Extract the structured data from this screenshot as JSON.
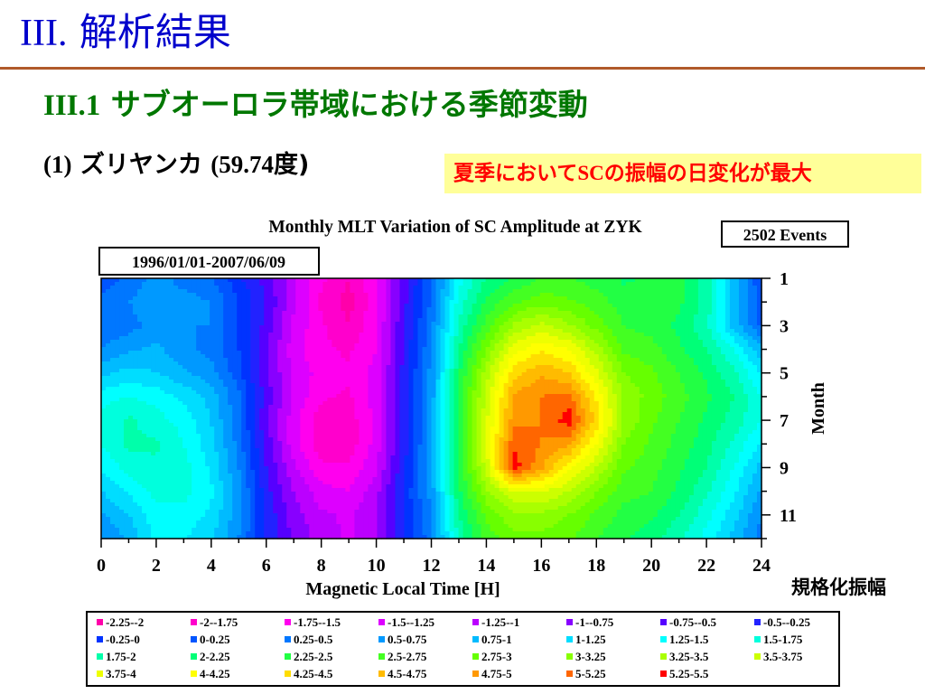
{
  "slide": {
    "title_num": "III.",
    "title_text": "解析結果",
    "section_num": "III.1",
    "section_text": "サブオーロラ帯域における季節変動",
    "station_prefix": "(1)",
    "station_name": "ズリヤンカ",
    "station_lat": "(59.74",
    "station_unit": "度)",
    "callout_a": "夏季において",
    "callout_b": "SC",
    "callout_c": "の振幅の日変化が最大",
    "norm_label": "規格化振幅"
  },
  "chart_data": {
    "type": "heatmap",
    "title": "Monthly MLT Variation of SC Amplitude at ZYK",
    "period_label": "1996/01/01-2007/06/09",
    "events_label": "2502 Events",
    "xlabel": "Magnetic Local Time [H]",
    "ylabel": "Month",
    "xlim": [
      0,
      24
    ],
    "ylim": [
      1,
      12
    ],
    "x_ticks": [
      "0",
      "2",
      "4",
      "6",
      "8",
      "10",
      "12",
      "14",
      "16",
      "18",
      "20",
      "22",
      "24"
    ],
    "y_ticks": [
      "1",
      "3",
      "5",
      "7",
      "9",
      "11"
    ],
    "x": [
      0,
      1,
      2,
      3,
      4,
      5,
      6,
      7,
      8,
      9,
      10,
      11,
      12,
      13,
      14,
      15,
      16,
      17,
      18,
      19,
      20,
      21,
      22,
      23,
      24
    ],
    "y": [
      1,
      2,
      3,
      4,
      5,
      6,
      7,
      8,
      9,
      10,
      11,
      12
    ],
    "z": [
      [
        0.1,
        0.3,
        0.6,
        0.4,
        0.3,
        -0.2,
        -0.6,
        -1.2,
        -1.7,
        -2.0,
        -1.5,
        -0.6,
        0.2,
        1.4,
        2.0,
        2.3,
        2.5,
        2.5,
        2.4,
        2.2,
        2.3,
        2.3,
        1.9,
        0.9,
        0.0
      ],
      [
        0.3,
        0.5,
        0.7,
        0.6,
        0.5,
        0.0,
        -0.5,
        -1.2,
        -1.8,
        -2.1,
        -1.6,
        -0.6,
        0.3,
        1.6,
        2.3,
        2.7,
        2.9,
        2.8,
        2.6,
        2.4,
        2.4,
        2.3,
        1.9,
        0.9,
        0.1
      ],
      [
        0.3,
        0.4,
        0.6,
        0.5,
        0.5,
        0.0,
        -0.6,
        -1.3,
        -1.7,
        -2.0,
        -1.5,
        -0.5,
        0.4,
        1.8,
        2.6,
        3.3,
        3.6,
        3.3,
        2.9,
        2.5,
        2.4,
        2.2,
        1.8,
        0.9,
        0.2
      ],
      [
        0.5,
        0.7,
        0.8,
        0.6,
        0.4,
        0.0,
        -0.7,
        -1.4,
        -1.7,
        -1.8,
        -1.5,
        -0.5,
        0.5,
        2.0,
        3.0,
        3.9,
        4.2,
        4.0,
        3.4,
        2.7,
        2.6,
        2.3,
        2.0,
        1.5,
        0.8
      ],
      [
        0.9,
        1.1,
        1.0,
        0.8,
        0.6,
        0.1,
        -0.7,
        -1.3,
        -1.6,
        -1.7,
        -1.4,
        -0.4,
        0.6,
        2.2,
        3.4,
        4.4,
        4.7,
        4.5,
        3.8,
        3.0,
        2.8,
        2.5,
        2.2,
        1.8,
        1.2
      ],
      [
        1.4,
        1.5,
        1.4,
        1.2,
        0.9,
        0.3,
        -0.6,
        -1.3,
        -1.7,
        -1.8,
        -1.4,
        -0.4,
        0.6,
        2.3,
        3.6,
        4.8,
        5.0,
        5.1,
        4.2,
        3.2,
        2.9,
        2.6,
        2.3,
        2.0,
        1.5
      ],
      [
        1.6,
        1.8,
        1.6,
        1.4,
        1.0,
        0.3,
        -0.7,
        -1.4,
        -1.9,
        -1.9,
        -1.4,
        -0.4,
        0.7,
        2.3,
        3.7,
        4.9,
        5.0,
        5.4,
        4.4,
        3.2,
        2.8,
        2.5,
        2.2,
        1.9,
        1.5
      ],
      [
        1.5,
        1.8,
        1.8,
        1.5,
        1.1,
        0.4,
        -0.6,
        -1.4,
        -1.9,
        -1.9,
        -1.4,
        -0.4,
        0.7,
        2.4,
        3.8,
        5.2,
        5.0,
        4.8,
        4.0,
        3.0,
        2.7,
        2.4,
        2.1,
        1.7,
        1.2
      ],
      [
        1.3,
        1.6,
        1.7,
        1.6,
        1.2,
        0.5,
        -0.5,
        -1.2,
        -1.7,
        -1.7,
        -1.3,
        -0.3,
        0.7,
        2.3,
        3.6,
        5.4,
        4.8,
        4.1,
        3.5,
        2.8,
        2.6,
        2.3,
        2.0,
        1.5,
        0.9
      ],
      [
        1.0,
        1.3,
        1.6,
        1.6,
        1.3,
        0.6,
        -0.4,
        -1.0,
        -1.4,
        -1.5,
        -1.1,
        -0.2,
        0.6,
        2.2,
        3.2,
        3.8,
        3.8,
        3.5,
        3.0,
        2.6,
        2.5,
        2.2,
        1.8,
        1.3,
        0.7
      ],
      [
        0.7,
        1.0,
        1.4,
        1.4,
        1.2,
        0.6,
        -0.3,
        -0.9,
        -1.2,
        -1.3,
        -1.0,
        -0.2,
        0.5,
        2.0,
        2.8,
        3.2,
        3.2,
        3.0,
        2.7,
        2.4,
        2.3,
        2.0,
        1.6,
        1.1,
        0.5
      ],
      [
        0.5,
        0.8,
        1.3,
        1.3,
        1.0,
        0.5,
        -0.3,
        -0.8,
        -1.1,
        -1.3,
        -1.0,
        -0.3,
        0.4,
        1.8,
        2.6,
        2.9,
        2.9,
        2.8,
        2.5,
        2.3,
        2.1,
        1.8,
        1.4,
        0.9,
        0.4
      ]
    ],
    "legend": [
      {
        "label": "-2.25--2",
        "color": "#ff00aa"
      },
      {
        "label": "-2--1.75",
        "color": "#ff00cc"
      },
      {
        "label": "-1.75--1.5",
        "color": "#ff00ee"
      },
      {
        "label": "-1.5--1.25",
        "color": "#dd00ff"
      },
      {
        "label": "-1.25--1",
        "color": "#bb00ff"
      },
      {
        "label": "-1--0.75",
        "color": "#8800ff"
      },
      {
        "label": "-0.75--0.5",
        "color": "#5500ff"
      },
      {
        "label": "-0.5--0.25",
        "color": "#2222ff"
      },
      {
        "label": "-0.25-0",
        "color": "#0033ff"
      },
      {
        "label": "0-0.25",
        "color": "#0055ff"
      },
      {
        "label": "0.25-0.5",
        "color": "#0077ff"
      },
      {
        "label": "0.5-0.75",
        "color": "#0099ff"
      },
      {
        "label": "0.75-1",
        "color": "#00bbff"
      },
      {
        "label": "1-1.25",
        "color": "#00ddff"
      },
      {
        "label": "1.25-1.5",
        "color": "#00ffff"
      },
      {
        "label": "1.5-1.75",
        "color": "#00ffdd"
      },
      {
        "label": "1.75-2",
        "color": "#00ffaa"
      },
      {
        "label": "2-2.25",
        "color": "#00ff77"
      },
      {
        "label": "2.25-2.5",
        "color": "#22ff44"
      },
      {
        "label": "2.5-2.75",
        "color": "#44ff22"
      },
      {
        "label": "2.75-3",
        "color": "#66ff00"
      },
      {
        "label": "3-3.25",
        "color": "#88ff00"
      },
      {
        "label": "3.25-3.5",
        "color": "#aaff00"
      },
      {
        "label": "3.5-3.75",
        "color": "#ccff00"
      },
      {
        "label": "3.75-4",
        "color": "#eeff00"
      },
      {
        "label": "4-4.25",
        "color": "#ffff00"
      },
      {
        "label": "4.25-4.5",
        "color": "#ffdd00"
      },
      {
        "label": "4.5-4.75",
        "color": "#ffbb00"
      },
      {
        "label": "4.75-5",
        "color": "#ff9900"
      },
      {
        "label": "5-5.25",
        "color": "#ff6600"
      },
      {
        "label": "5.25-5.5",
        "color": "#ff0000"
      }
    ]
  }
}
